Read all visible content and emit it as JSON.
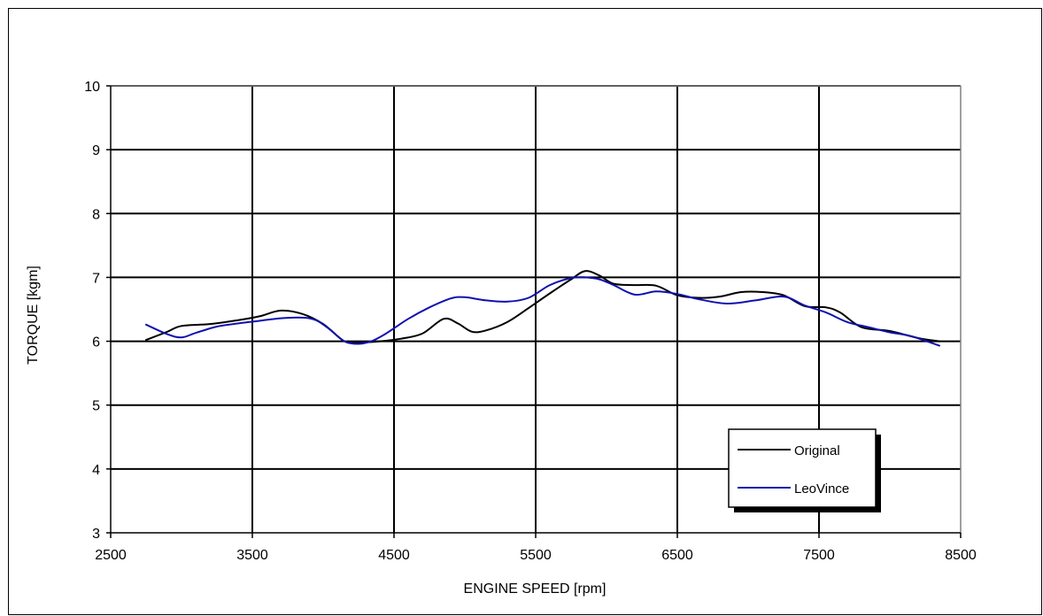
{
  "chart_data": {
    "type": "line",
    "title": "",
    "xlabel": "ENGINE SPEED [rpm]",
    "ylabel": "TORQUE [kgm]",
    "xlim": [
      2500,
      8500
    ],
    "ylim": [
      3,
      10
    ],
    "x_ticks": [
      2500,
      3500,
      4500,
      5500,
      6500,
      7500,
      8500
    ],
    "y_ticks": [
      3,
      4,
      5,
      6,
      7,
      8,
      9,
      10
    ],
    "grid": true,
    "legend_position": "bottom-right",
    "series": [
      {
        "name": "Original",
        "color": "#000000",
        "x": [
          2750,
          2900,
          3000,
          3200,
          3400,
          3550,
          3700,
          3850,
          4000,
          4150,
          4250,
          4400,
          4550,
          4700,
          4850,
          4950,
          5050,
          5150,
          5300,
          5450,
          5600,
          5750,
          5850,
          5950,
          6050,
          6200,
          6350,
          6500,
          6650,
          6800,
          6950,
          7100,
          7250,
          7400,
          7550,
          7650,
          7800,
          8000,
          8200,
          8350
        ],
        "values": [
          6.02,
          6.15,
          6.24,
          6.27,
          6.33,
          6.39,
          6.48,
          6.43,
          6.27,
          6.0,
          5.98,
          6.0,
          6.04,
          6.12,
          6.35,
          6.28,
          6.15,
          6.17,
          6.3,
          6.52,
          6.75,
          6.97,
          7.1,
          7.03,
          6.9,
          6.88,
          6.87,
          6.72,
          6.68,
          6.7,
          6.77,
          6.77,
          6.72,
          6.55,
          6.53,
          6.45,
          6.22,
          6.16,
          6.05,
          6.0
        ]
      },
      {
        "name": "LeoVince",
        "color": "#1010b0",
        "x": [
          2750,
          2900,
          3000,
          3100,
          3250,
          3400,
          3550,
          3700,
          3850,
          3950,
          4050,
          4150,
          4250,
          4350,
          4450,
          4600,
          4750,
          4900,
          5000,
          5150,
          5300,
          5450,
          5600,
          5750,
          5850,
          5950,
          6050,
          6200,
          6350,
          6500,
          6650,
          6850,
          7050,
          7250,
          7400,
          7550,
          7700,
          7850,
          8000,
          8150,
          8350
        ],
        "values": [
          6.26,
          6.11,
          6.06,
          6.13,
          6.23,
          6.28,
          6.32,
          6.36,
          6.37,
          6.33,
          6.18,
          6.0,
          5.96,
          6.01,
          6.13,
          6.35,
          6.53,
          6.67,
          6.69,
          6.64,
          6.62,
          6.68,
          6.88,
          6.99,
          7.0,
          6.97,
          6.88,
          6.73,
          6.78,
          6.74,
          6.66,
          6.59,
          6.64,
          6.7,
          6.56,
          6.45,
          6.3,
          6.22,
          6.14,
          6.08,
          5.93
        ]
      }
    ]
  }
}
